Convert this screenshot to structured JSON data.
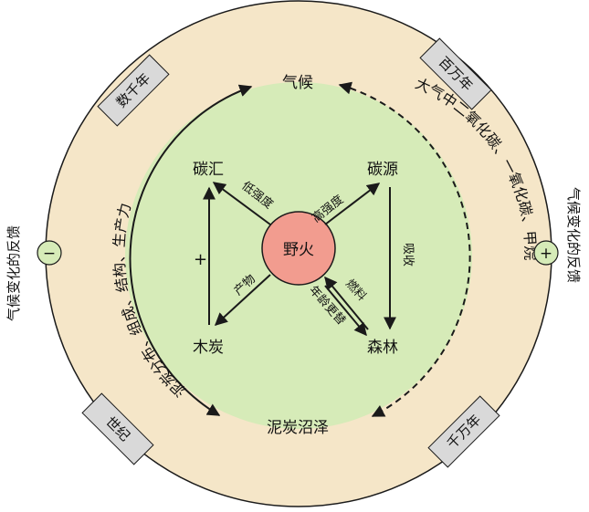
{
  "colors": {
    "outer_ring": "#f5e6c8",
    "inner_disc": "#d6ebb8",
    "center_fill": "#f29c8f",
    "tag_fill": "#d9d9d9",
    "stroke": "#1a1a1a"
  },
  "center": {
    "label": "野火"
  },
  "nodes": {
    "climate": "气候",
    "peat": "泥炭沼泽",
    "carbon_sink": "碳汇",
    "carbon_source": "碳源",
    "charcoal": "木炭",
    "forest": "森林"
  },
  "edges": {
    "low_intensity": "低强度",
    "high_intensity": "高强度",
    "production": "产物",
    "fuel": "燃料",
    "age_turnover": "年龄更替",
    "absorb": "吸收",
    "plus_sign": "+"
  },
  "arc_labels": {
    "left": "泥炭分布、组成、结构、生产力",
    "right": "大气中二氧化碳、一氧化碳、甲烷"
  },
  "timescales": {
    "top_left": "数千年",
    "top_right": "百万年",
    "bottom_left": "世纪",
    "bottom_right": "千万年"
  },
  "feedback": {
    "left_text": "气候变化的反馈",
    "left_sign": "−",
    "right_text": "气候变化的反馈",
    "right_sign": "+"
  }
}
